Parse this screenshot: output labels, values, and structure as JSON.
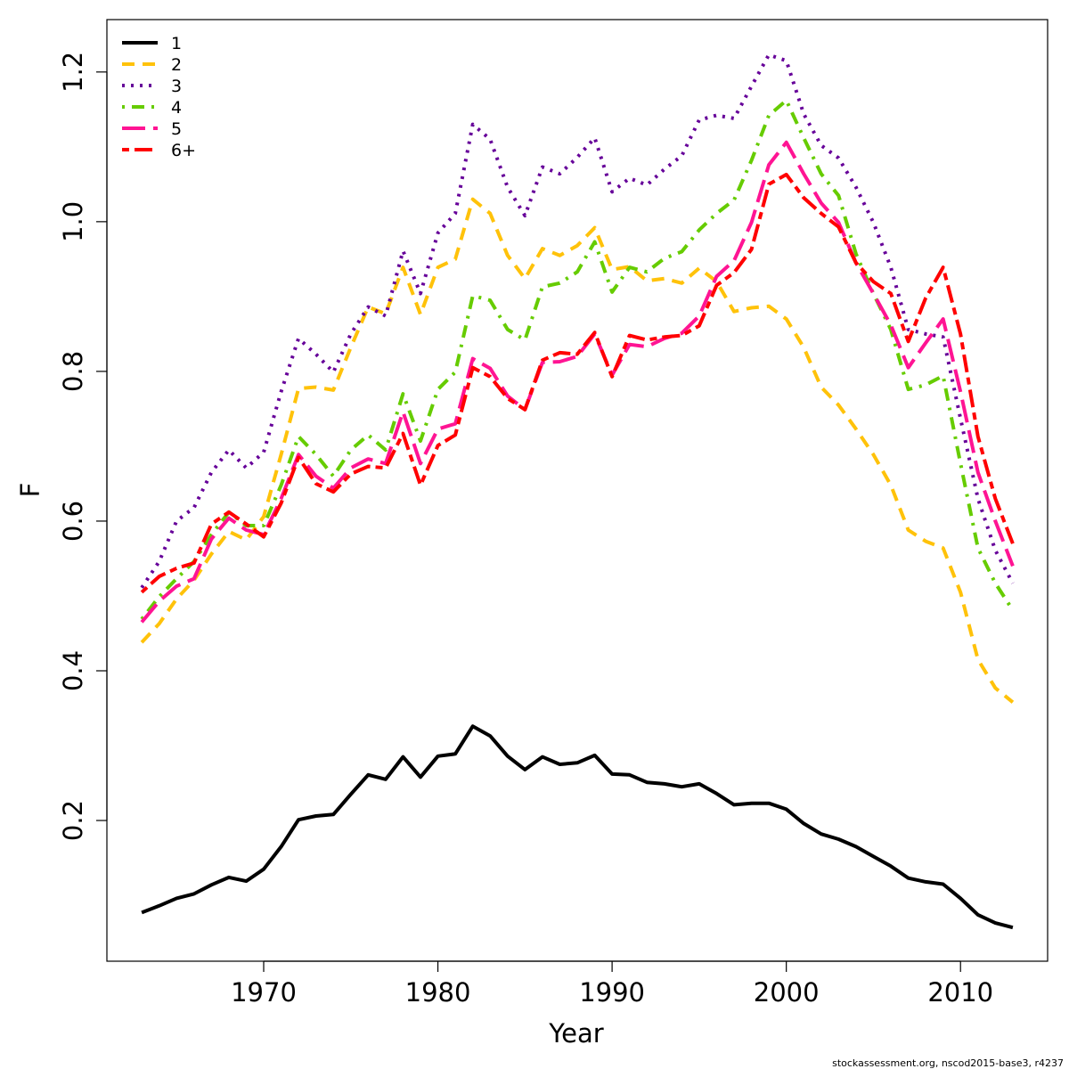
{
  "chart_data": {
    "type": "line",
    "x_label": "Year",
    "y_label": "F",
    "caption": "stockassessment.org, nscod2015-base3, r4237",
    "x": [
      1963,
      1964,
      1965,
      1966,
      1967,
      1968,
      1969,
      1970,
      1971,
      1972,
      1973,
      1974,
      1975,
      1976,
      1977,
      1978,
      1979,
      1980,
      1981,
      1982,
      1983,
      1984,
      1985,
      1986,
      1987,
      1988,
      1989,
      1990,
      1991,
      1992,
      1993,
      1994,
      1995,
      1996,
      1997,
      1998,
      1999,
      2000,
      2001,
      2002,
      2003,
      2004,
      2005,
      2006,
      2007,
      2008,
      2009,
      2010,
      2011,
      2012,
      2013
    ],
    "xlim": [
      1961,
      2015
    ],
    "xticks": [
      1970,
      1980,
      1990,
      2000,
      2010
    ],
    "ylim": [
      0.012,
      1.27
    ],
    "yticks": [
      0.2,
      0.4,
      0.6,
      0.8,
      {
        "value": 1,
        "label": "1.0"
      },
      1.2
    ],
    "legend": "top-left",
    "series": [
      {
        "name": "1",
        "color": "#000000",
        "dash": "solid",
        "values": [
          0.077,
          0.086,
          0.096,
          0.102,
          0.114,
          0.124,
          0.119,
          0.135,
          0.165,
          0.201,
          0.206,
          0.208,
          0.235,
          0.261,
          0.255,
          0.285,
          0.258,
          0.286,
          0.289,
          0.326,
          0.313,
          0.286,
          0.268,
          0.285,
          0.275,
          0.277,
          0.287,
          0.262,
          0.261,
          0.251,
          0.249,
          0.245,
          0.249,
          0.236,
          0.221,
          0.223,
          0.223,
          0.215,
          0.196,
          0.182,
          0.175,
          0.165,
          0.152,
          0.139,
          0.123,
          0.118,
          0.115,
          0.096,
          0.074,
          0.063,
          0.057
        ]
      },
      {
        "name": "2",
        "color": "#ffc20a",
        "dash": "dashed",
        "values": [
          0.438,
          0.463,
          0.496,
          0.521,
          0.556,
          0.586,
          0.575,
          0.606,
          0.689,
          0.777,
          0.779,
          0.775,
          0.832,
          0.886,
          0.877,
          0.939,
          0.876,
          0.939,
          0.95,
          1.03,
          1.011,
          0.955,
          0.924,
          0.964,
          0.955,
          0.968,
          0.992,
          0.936,
          0.94,
          0.921,
          0.924,
          0.918,
          0.938,
          0.92,
          0.88,
          0.885,
          0.887,
          0.87,
          0.832,
          0.779,
          0.755,
          0.723,
          0.689,
          0.648,
          0.588,
          0.573,
          0.564,
          0.505,
          0.415,
          0.377,
          0.358
        ]
      },
      {
        "name": "3",
        "color": "#660099",
        "dash": "dotted",
        "values": [
          0.511,
          0.546,
          0.6,
          0.618,
          0.665,
          0.695,
          0.671,
          0.692,
          0.773,
          0.844,
          0.823,
          0.799,
          0.85,
          0.886,
          0.874,
          0.961,
          0.904,
          0.985,
          1.011,
          1.13,
          1.11,
          1.046,
          1.008,
          1.073,
          1.064,
          1.086,
          1.112,
          1.04,
          1.058,
          1.049,
          1.07,
          1.088,
          1.136,
          1.142,
          1.138,
          1.181,
          1.223,
          1.215,
          1.144,
          1.102,
          1.085,
          1.046,
          0.999,
          0.939,
          0.856,
          0.85,
          0.846,
          0.737,
          0.63,
          0.561,
          0.517
        ]
      },
      {
        "name": "4",
        "color": "#66cc00",
        "dash": "dotdash",
        "values": [
          0.469,
          0.499,
          0.523,
          0.546,
          0.582,
          0.612,
          0.594,
          0.594,
          0.648,
          0.713,
          0.689,
          0.66,
          0.695,
          0.715,
          0.695,
          0.77,
          0.707,
          0.776,
          0.799,
          0.901,
          0.895,
          0.856,
          0.842,
          0.913,
          0.918,
          0.933,
          0.973,
          0.906,
          0.939,
          0.933,
          0.951,
          0.96,
          0.989,
          1.011,
          1.029,
          1.082,
          1.142,
          1.162,
          1.112,
          1.064,
          1.035,
          0.957,
          0.904,
          0.856,
          0.776,
          0.782,
          0.794,
          0.677,
          0.564,
          0.517,
          0.481
        ]
      },
      {
        "name": "5",
        "color": "#ff1493",
        "dash": "longdash",
        "values": [
          0.465,
          0.493,
          0.513,
          0.523,
          0.576,
          0.604,
          0.588,
          0.582,
          0.63,
          0.689,
          0.66,
          0.644,
          0.671,
          0.683,
          0.677,
          0.746,
          0.677,
          0.723,
          0.73,
          0.817,
          0.804,
          0.767,
          0.749,
          0.812,
          0.813,
          0.82,
          0.85,
          0.795,
          0.836,
          0.833,
          0.844,
          0.851,
          0.874,
          0.927,
          0.948,
          0.999,
          1.076,
          1.106,
          1.064,
          1.025,
          0.999,
          0.945,
          0.904,
          0.862,
          0.805,
          0.838,
          0.87,
          0.773,
          0.665,
          0.6,
          0.54
        ]
      },
      {
        "name": "6+",
        "color": "#ff0000",
        "dash": "twodash",
        "values": [
          0.505,
          0.526,
          0.537,
          0.544,
          0.596,
          0.612,
          0.596,
          0.579,
          0.624,
          0.685,
          0.65,
          0.639,
          0.663,
          0.673,
          0.671,
          0.717,
          0.648,
          0.701,
          0.715,
          0.805,
          0.793,
          0.764,
          0.749,
          0.815,
          0.825,
          0.823,
          0.852,
          0.793,
          0.848,
          0.842,
          0.846,
          0.848,
          0.861,
          0.915,
          0.932,
          0.963,
          1.05,
          1.063,
          1.032,
          1.011,
          0.993,
          0.945,
          0.92,
          0.904,
          0.84,
          0.898,
          0.939,
          0.85,
          0.713,
          0.63,
          0.57
        ]
      }
    ]
  }
}
